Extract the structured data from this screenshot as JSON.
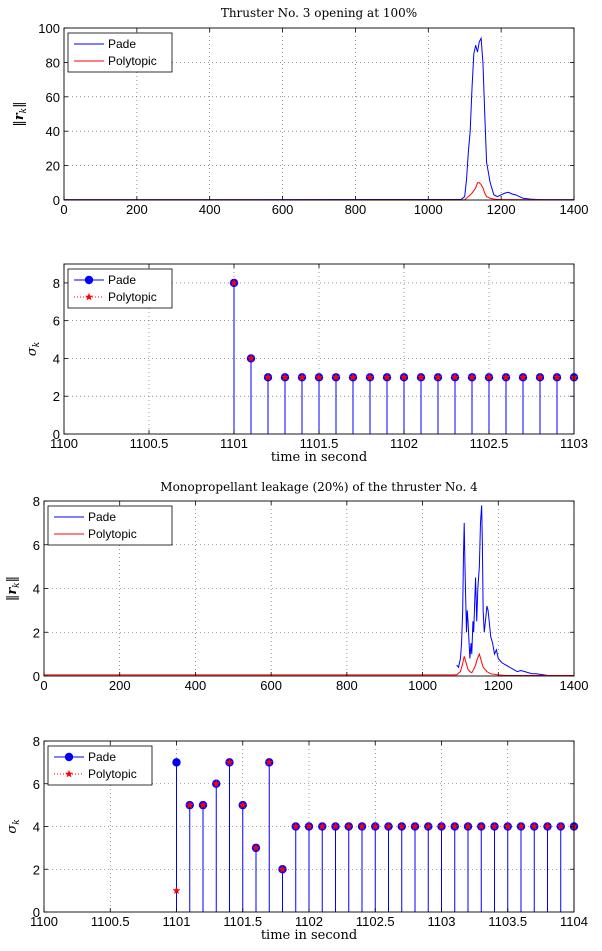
{
  "figure": {
    "top_title": "Thruster No. 3 opening at 100%",
    "bottom_title": "Monopropellant leakage (20%) of the thruster No. 4"
  },
  "chart_data": [
    {
      "type": "line",
      "title": "Thruster No. 3 opening at 100%",
      "ylabel": "||r_k||",
      "xlabel": "",
      "xlim": [
        0,
        1400
      ],
      "ylim": [
        0,
        100
      ],
      "xticks": [
        0,
        200,
        400,
        600,
        800,
        1000,
        1200,
        1400
      ],
      "yticks": [
        0,
        20,
        40,
        60,
        80,
        100
      ],
      "grid": true,
      "legend_position": "top-left",
      "series": [
        {
          "name": "Pade",
          "color": "#0000ff",
          "x": [
            0,
            1090,
            1100,
            1105,
            1110,
            1115,
            1120,
            1125,
            1130,
            1135,
            1140,
            1145,
            1150,
            1155,
            1160,
            1170,
            1180,
            1190,
            1200,
            1210,
            1220,
            1230,
            1240,
            1250,
            1260,
            1280,
            1300,
            1320,
            1400
          ],
          "y": [
            0.2,
            0.3,
            2,
            12,
            28,
            40,
            65,
            85,
            90,
            86,
            92,
            94,
            80,
            50,
            22,
            10,
            3,
            2,
            3,
            4,
            4.5,
            3.5,
            3,
            2,
            1,
            0.5,
            0.3,
            0.2,
            0.2
          ]
        },
        {
          "name": "Polytopic",
          "color": "#ff0000",
          "x": [
            0,
            1100,
            1110,
            1120,
            1130,
            1135,
            1140,
            1145,
            1150,
            1155,
            1160,
            1170,
            1180,
            1200,
            1400
          ],
          "y": [
            0.1,
            0.1,
            2,
            4,
            7,
            10,
            10,
            9,
            7,
            4,
            2,
            1,
            0.5,
            0.2,
            0.1
          ]
        }
      ]
    },
    {
      "type": "stem",
      "title": "",
      "ylabel": "σ_k",
      "xlabel": "time in second",
      "xlim": [
        1100,
        1103
      ],
      "ylim": [
        0,
        9
      ],
      "xticks": [
        1100,
        1100.5,
        1101,
        1101.5,
        1102,
        1102.5,
        1103
      ],
      "yticks": [
        0,
        2,
        4,
        6,
        8
      ],
      "grid": true,
      "legend_position": "top-left",
      "series": [
        {
          "name": "Pade",
          "color": "#0000ff",
          "marker": "filled-circle",
          "x": [
            1101.0,
            1101.1,
            1101.2,
            1101.3,
            1101.4,
            1101.5,
            1101.6,
            1101.7,
            1101.8,
            1101.9,
            1102.0,
            1102.1,
            1102.2,
            1102.3,
            1102.4,
            1102.5,
            1102.6,
            1102.7,
            1102.8,
            1102.9,
            1103.0
          ],
          "y": [
            8,
            4,
            3,
            3,
            3,
            3,
            3,
            3,
            3,
            3,
            3,
            3,
            3,
            3,
            3,
            3,
            3,
            3,
            3,
            3,
            3
          ]
        },
        {
          "name": "Polytopic",
          "color": "#ff0000",
          "marker": "star",
          "x": [
            1101.0,
            1101.1,
            1101.2,
            1101.3,
            1101.4,
            1101.5,
            1101.6,
            1101.7,
            1101.8,
            1101.9,
            1102.0,
            1102.1,
            1102.2,
            1102.3,
            1102.4,
            1102.5,
            1102.6,
            1102.7,
            1102.8,
            1102.9,
            1103.0
          ],
          "y": [
            8,
            4,
            3,
            3,
            3,
            3,
            3,
            3,
            3,
            3,
            3,
            3,
            3,
            3,
            3,
            3,
            3,
            3,
            3,
            3,
            3
          ]
        }
      ]
    },
    {
      "type": "line",
      "title": "Monopropellant leakage (20%) of the thruster No. 4",
      "ylabel": "||r_k||",
      "xlabel": "",
      "xlim": [
        0,
        1400
      ],
      "ylim": [
        0,
        8
      ],
      "xticks": [
        0,
        200,
        400,
        600,
        800,
        1000,
        1200,
        1400
      ],
      "yticks": [
        0,
        2,
        4,
        6,
        8
      ],
      "grid": true,
      "legend_position": "top-left",
      "series": [
        {
          "name": "Pade",
          "color": "#0000ff",
          "x": [
            1090,
            1095,
            1100,
            1103,
            1106,
            1108,
            1110,
            1112,
            1114,
            1116,
            1118,
            1120,
            1122,
            1125,
            1128,
            1130,
            1133,
            1135,
            1138,
            1140,
            1143,
            1146,
            1150,
            1153,
            1156,
            1158,
            1160,
            1163,
            1166,
            1170,
            1173,
            1176,
            1180,
            1185,
            1190,
            1195,
            1200,
            1205,
            1210,
            1220,
            1230,
            1240,
            1250,
            1260,
            1270,
            1280,
            1290,
            1300,
            1320,
            1340
          ],
          "y": [
            0.5,
            0.4,
            0.8,
            1.5,
            3,
            5.5,
            7,
            5,
            3.5,
            2,
            3,
            2.5,
            1.8,
            0.8,
            1.5,
            1,
            2.5,
            2,
            3.5,
            4.5,
            2.5,
            4,
            5,
            7,
            7.8,
            6,
            3,
            2,
            2.5,
            3.2,
            3,
            2.5,
            1.8,
            1.5,
            1,
            1.2,
            0.8,
            0.7,
            0.6,
            0.5,
            0.4,
            0.3,
            0.2,
            0.25,
            0.2,
            0.15,
            0.1,
            0.1,
            0.05,
            0
          ]
        },
        {
          "name": "Polytopic",
          "color": "#ff0000",
          "x": [
            0,
            1090,
            1100,
            1105,
            1110,
            1115,
            1120,
            1125,
            1130,
            1135,
            1140,
            1145,
            1150,
            1155,
            1160,
            1165,
            1170,
            1180,
            1200,
            1220,
            1400
          ],
          "y": [
            0.05,
            0.05,
            0.2,
            0.5,
            0.9,
            0.6,
            0.3,
            0.2,
            0.15,
            0.3,
            0.5,
            0.8,
            1.0,
            0.7,
            0.4,
            0.3,
            0.2,
            0.1,
            0.05,
            0.02,
            0.02
          ]
        }
      ]
    },
    {
      "type": "stem",
      "title": "",
      "ylabel": "σ_k",
      "xlabel": "time in second",
      "xlim": [
        1100,
        1104
      ],
      "ylim": [
        0,
        8
      ],
      "xticks": [
        1100,
        1100.5,
        1101,
        1101.5,
        1102,
        1102.5,
        1103,
        1103.5,
        1104
      ],
      "yticks": [
        0,
        2,
        4,
        6,
        8
      ],
      "grid": true,
      "legend_position": "top-left",
      "series": [
        {
          "name": "Pade",
          "color": "#0000ff",
          "marker": "filled-circle",
          "x": [
            1101.0,
            1101.1,
            1101.2,
            1101.3,
            1101.4,
            1101.5,
            1101.6,
            1101.7,
            1101.8,
            1101.9,
            1102.0,
            1102.1,
            1102.2,
            1102.3,
            1102.4,
            1102.5,
            1102.6,
            1102.7,
            1102.8,
            1102.9,
            1103.0,
            1103.1,
            1103.2,
            1103.3,
            1103.4,
            1103.5,
            1103.6,
            1103.7,
            1103.8,
            1103.9,
            1104.0
          ],
          "y": [
            7,
            5,
            5,
            6,
            7,
            5,
            3,
            7,
            2,
            4,
            4,
            4,
            4,
            4,
            4,
            4,
            4,
            4,
            4,
            4,
            4,
            4,
            4,
            4,
            4,
            4,
            4,
            4,
            4,
            4,
            4
          ]
        },
        {
          "name": "Polytopic",
          "color": "#ff0000",
          "marker": "star",
          "x": [
            1101.0,
            1101.1,
            1101.2,
            1101.3,
            1101.4,
            1101.5,
            1101.6,
            1101.7,
            1101.8,
            1101.9,
            1102.0,
            1102.1,
            1102.2,
            1102.3,
            1102.4,
            1102.5,
            1102.6,
            1102.7,
            1102.8,
            1102.9,
            1103.0,
            1103.1,
            1103.2,
            1103.3,
            1103.4,
            1103.5,
            1103.6,
            1103.7,
            1103.8,
            1103.9,
            1104.0
          ],
          "y": [
            1,
            5,
            5,
            6,
            7,
            5,
            3,
            7,
            2,
            4,
            4,
            4,
            4,
            4,
            4,
            4,
            4,
            4,
            4,
            4,
            4,
            4,
            4,
            4,
            4,
            4,
            4,
            4,
            4,
            4,
            4
          ]
        }
      ]
    }
  ]
}
